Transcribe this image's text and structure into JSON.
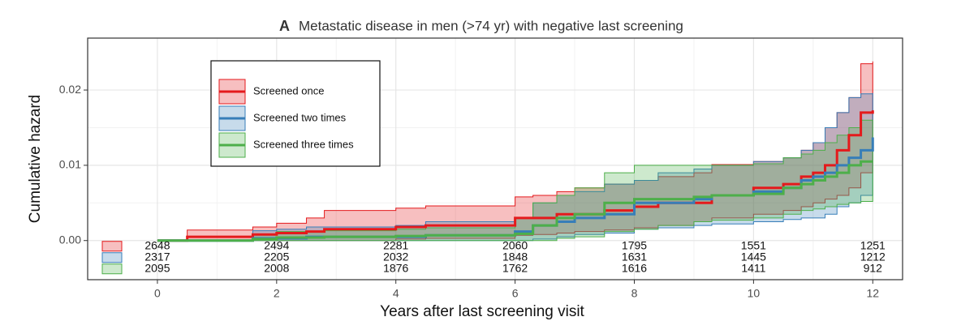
{
  "chart_data": {
    "type": "step-band",
    "panel_label": "A",
    "title": "Metastatic disease in men (>74 yr) with negative last screening",
    "x_label": "Years after last screening visit",
    "y_label": "Cumulative hazard",
    "xlim": [
      -1.17,
      12.5
    ],
    "ylim": [
      -0.0052,
      0.0269
    ],
    "xticks": [
      0,
      2,
      4,
      6,
      8,
      10,
      12
    ],
    "yticks": [
      {
        "value": 0,
        "label": "0.00"
      },
      {
        "value": 0.01,
        "label": "0.01"
      },
      {
        "value": 0.02,
        "label": "0.02"
      }
    ],
    "grid": true,
    "legend": "top-left",
    "x": [
      0,
      0.5,
      1.6,
      2,
      2.5,
      2.8,
      4,
      4.5,
      6,
      6.3,
      6.7,
      7,
      7.5,
      8,
      8.4,
      9,
      9.3,
      10,
      10.5,
      10.8,
      11,
      11.2,
      11.4,
      11.6,
      11.8,
      12
    ],
    "series": [
      {
        "name": "Screened once",
        "color": "#e41a1c",
        "values": [
          0,
          0.0005,
          0.0008,
          0.001,
          0.0012,
          0.0015,
          0.0018,
          0.002,
          0.003,
          0.003,
          0.0035,
          0.0035,
          0.004,
          0.0045,
          0.005,
          0.005,
          0.006,
          0.007,
          0.0075,
          0.0085,
          0.009,
          0.01,
          0.012,
          0.014,
          0.017,
          0.0173
        ],
        "upper": [
          0,
          0.0014,
          0.0018,
          0.0023,
          0.003,
          0.004,
          0.0043,
          0.0046,
          0.0058,
          0.006,
          0.0065,
          0.007,
          0.0075,
          0.008,
          0.0085,
          0.009,
          0.0101,
          0.0105,
          0.011,
          0.012,
          0.013,
          0.015,
          0.017,
          0.019,
          0.0235,
          0.0238
        ],
        "lower": [
          0,
          0,
          0,
          0,
          0,
          0,
          0.0002,
          0.0003,
          0.0007,
          0.0008,
          0.001,
          0.0012,
          0.0014,
          0.0017,
          0.002,
          0.0025,
          0.003,
          0.0035,
          0.004,
          0.0045,
          0.005,
          0.0055,
          0.006,
          0.007,
          0.009,
          0.0095
        ],
        "at_risk": [
          2648,
          2494,
          2281,
          2060,
          1795,
          1551,
          1251
        ]
      },
      {
        "name": "Screened two times",
        "color": "#377eb8",
        "values": [
          0,
          0,
          0.0003,
          0.0003,
          0.0005,
          0.0005,
          0.0005,
          0.0007,
          0.0012,
          0.002,
          0.0025,
          0.003,
          0.0035,
          0.005,
          0.005,
          0.0055,
          0.006,
          0.0065,
          0.007,
          0.008,
          0.0085,
          0.009,
          0.01,
          0.011,
          0.012,
          0.0137
        ],
        "upper": [
          0,
          0,
          0.0013,
          0.0015,
          0.0018,
          0.0018,
          0.002,
          0.0025,
          0.003,
          0.005,
          0.006,
          0.0065,
          0.0075,
          0.008,
          0.009,
          0.0095,
          0.01,
          0.0105,
          0.011,
          0.012,
          0.013,
          0.015,
          0.017,
          0.019,
          0.0195,
          0.0196
        ],
        "lower": [
          0,
          0,
          0,
          0,
          0,
          0,
          0,
          0,
          0,
          0.0002,
          0.0005,
          0.0008,
          0.001,
          0.0015,
          0.0017,
          0.002,
          0.0022,
          0.0025,
          0.0028,
          0.003,
          0.003,
          0.0035,
          0.0045,
          0.005,
          0.006,
          0.0078
        ],
        "at_risk": [
          2317,
          2205,
          2032,
          1848,
          1631,
          1445,
          1212
        ]
      },
      {
        "name": "Screened three times",
        "color": "#4daf4a",
        "values": [
          0,
          0,
          0.0002,
          0.0004,
          0.0004,
          0.0005,
          0.0006,
          0.0007,
          0.0009,
          0.002,
          0.003,
          0.0035,
          0.005,
          0.0055,
          0.0055,
          0.0058,
          0.006,
          0.0062,
          0.007,
          0.0075,
          0.008,
          0.0085,
          0.009,
          0.01,
          0.0105,
          0.0105
        ],
        "upper": [
          0,
          0,
          0.0008,
          0.0012,
          0.0012,
          0.0013,
          0.0015,
          0.0017,
          0.003,
          0.005,
          0.006,
          0.007,
          0.009,
          0.01,
          0.01,
          0.01,
          0.01,
          0.0102,
          0.011,
          0.0115,
          0.012,
          0.013,
          0.014,
          0.015,
          0.016,
          0.016
        ],
        "lower": [
          0,
          0,
          0,
          0,
          0,
          0,
          0,
          0,
          0,
          0,
          0.0003,
          0.0005,
          0.0012,
          0.0015,
          0.002,
          0.0025,
          0.0027,
          0.003,
          0.0035,
          0.004,
          0.0042,
          0.0045,
          0.0048,
          0.005,
          0.0052,
          0.0053
        ],
        "at_risk": [
          2095,
          2008,
          1876,
          1762,
          1616,
          1411,
          912
        ]
      }
    ]
  }
}
